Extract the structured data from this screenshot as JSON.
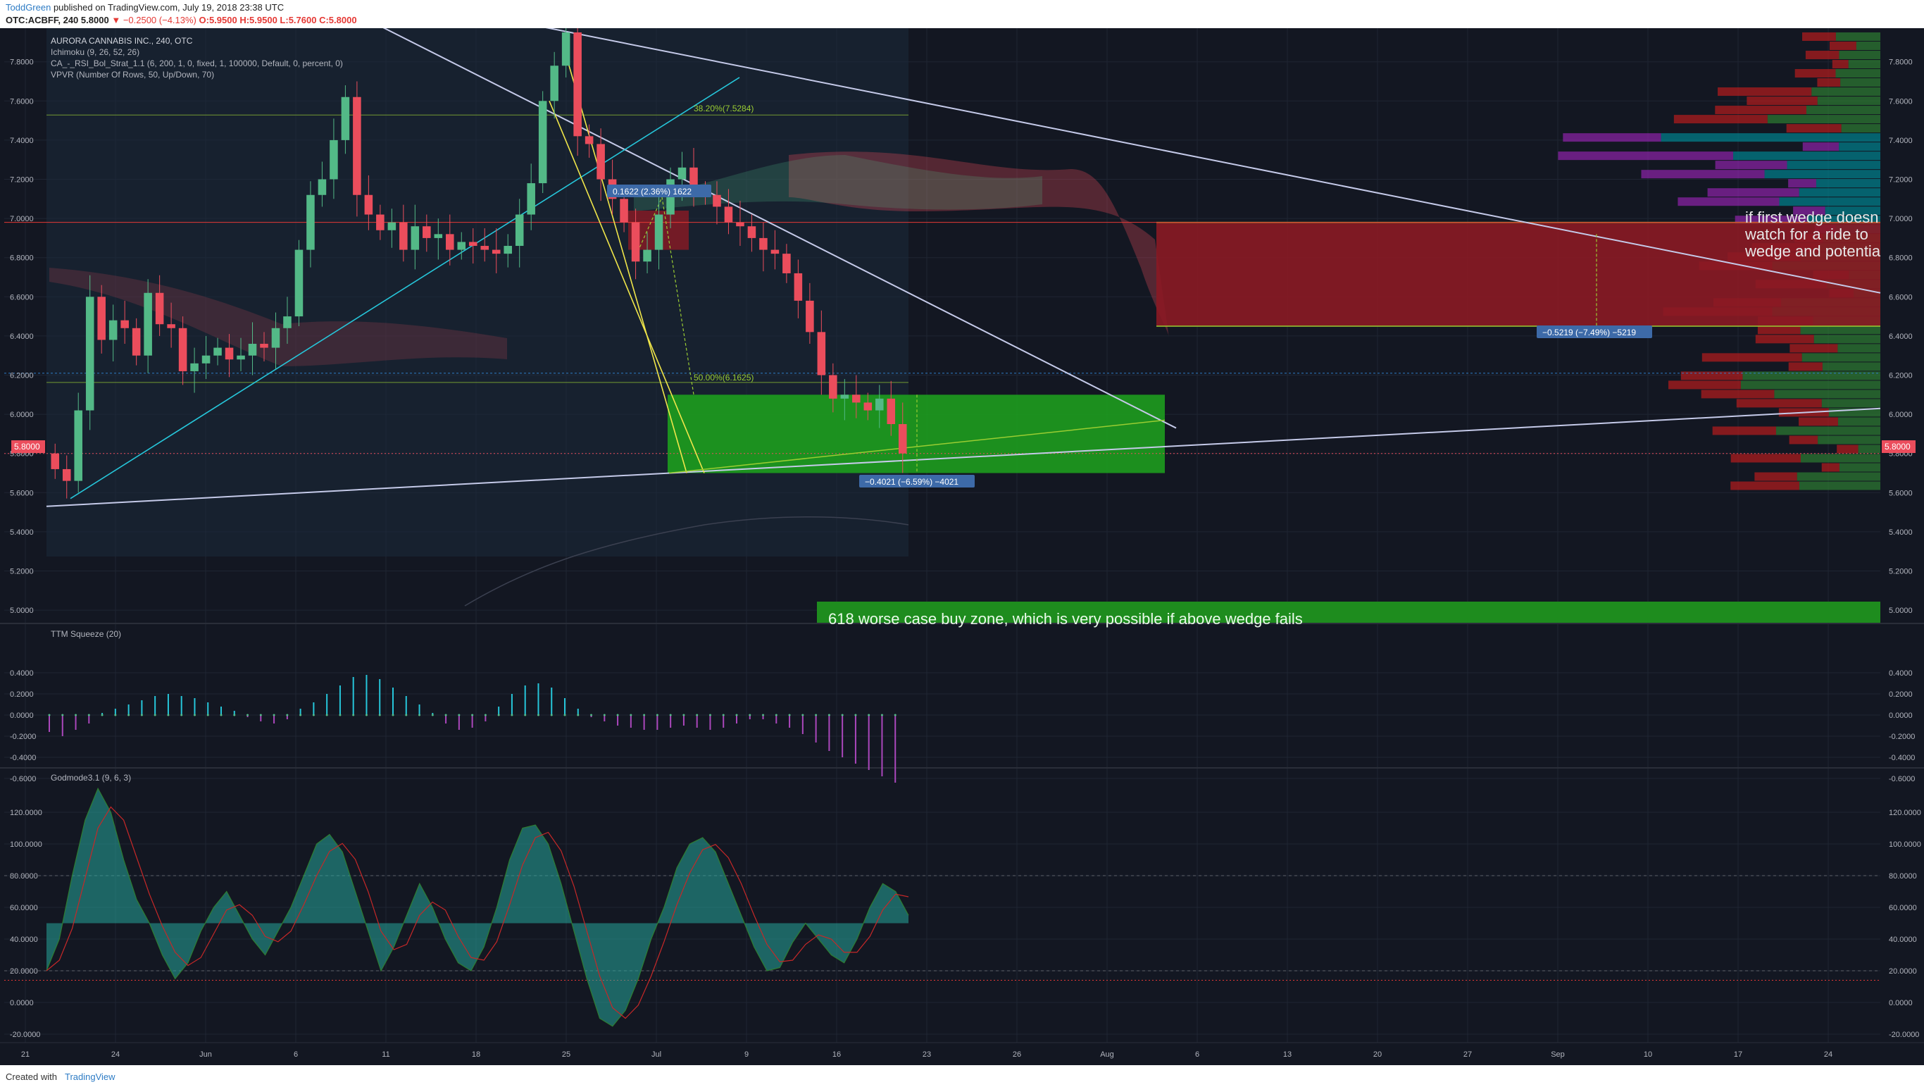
{
  "header": {
    "author": "ToddGreen",
    "published": "published on TradingView.com, July 19, 2018 23:38 UTC",
    "symbol_line_prefix": "OTC:ACBFF, 240",
    "change_arrow": "▼",
    "change": "−0.2500 (−4.13%)",
    "ohlc": "O:5.9500 H:5.9500 L:5.7600 C:5.8000"
  },
  "footer": {
    "created_with": "Created with",
    "brand": "TradingView"
  },
  "colors": {
    "background": "#131722",
    "grid": "#1f2533",
    "up": "#53b987",
    "down": "#eb4d5c",
    "text": "#b2b5be",
    "wedge_line": "#c5cae9",
    "green_zone": "#1e8c1e",
    "red_zone": "#8b1a24"
  },
  "main_pane": {
    "legend": [
      "AURORA CANNABIS INC., 240, OTC",
      "Ichimoku (9, 26, 52, 26)",
      "CA_-_RSI_Bol_Strat_1.1 (6, 200, 1, 0, fixed, 1, 100000, Default, 0, percent, 0)",
      "VPVR (Number Of Rows, 50, Up/Down, 70)"
    ],
    "price_ticks": [
      "7.8000",
      "7.6000",
      "7.4000",
      "7.2000",
      "7.0000",
      "6.8000",
      "6.6000",
      "6.4000",
      "6.2000",
      "6.0000",
      "5.8000",
      "5.6000",
      "5.4000",
      "5.2000",
      "5.0000"
    ],
    "last_price": "5.8000",
    "fib_labels": [
      "38.20%(7.5284)",
      "50.00%(6.1625)"
    ],
    "measure_labels": [
      "0.1622 (2.36%) 1622",
      "−0.4021 (−6.59%) −4021",
      "−0.5219 (−7.49%) −5219"
    ],
    "annotations": [
      "if first wedge doesn",
      "watch for a ride to",
      "wedge and potentia",
      "618 worse case buy zone, which is very possible if above wedge fails"
    ]
  },
  "ttm_pane": {
    "legend": "TTM Squeeze (20)",
    "ticks": [
      "0.4000",
      "0.2000",
      "0.0000",
      "-0.2000",
      "-0.4000",
      "-0.6000"
    ]
  },
  "godmode_pane": {
    "legend": "Godmode3.1 (9, 6, 3)",
    "ticks": [
      "120.0000",
      "100.0000",
      "80.0000",
      "60.0000",
      "40.0000",
      "20.0000",
      "0.0000",
      "-20.0000"
    ]
  },
  "time_axis": [
    "21",
    "24",
    "Jun",
    "6",
    "11",
    "18",
    "25",
    "Jul",
    "9",
    "16",
    "23",
    "26",
    "Aug",
    "6",
    "13",
    "20",
    "27",
    "Sep",
    "10",
    "17",
    "24"
  ],
  "chart_data": {
    "type": "candlestick",
    "title": "AURORA CANNABIS INC., 240, OTC",
    "symbol": "OTC:ACBFF",
    "interval": "240",
    "ylim": [
      4.95,
      7.95
    ],
    "last": {
      "open": 5.95,
      "high": 5.95,
      "low": 5.76,
      "close": 5.8,
      "change": -0.25,
      "change_pct": -4.13
    },
    "closes": [
      5.72,
      5.66,
      6.02,
      6.6,
      6.38,
      6.48,
      6.44,
      6.3,
      6.62,
      6.46,
      6.44,
      6.22,
      6.26,
      6.3,
      6.34,
      6.28,
      6.3,
      6.36,
      6.34,
      6.44,
      6.5,
      6.84,
      7.12,
      7.2,
      7.4,
      7.62,
      7.12,
      7.02,
      6.94,
      6.98,
      6.84,
      6.96,
      6.9,
      6.92,
      6.84,
      6.88,
      6.86,
      6.84,
      6.82,
      6.86,
      7.02,
      7.18,
      7.6,
      7.78,
      7.95,
      7.42,
      7.38,
      7.2,
      7.1,
      6.98,
      6.78,
      6.84,
      7.02,
      7.2,
      7.26,
      7.14,
      7.12,
      7.06,
      6.98,
      6.96,
      6.9,
      6.84,
      6.82,
      6.72,
      6.58,
      6.42,
      6.2,
      6.08,
      6.1,
      6.06,
      6.02,
      6.08,
      5.95,
      5.8
    ],
    "ichimoku_cloud_end": 6.4,
    "red_zone": [
      6.45,
      6.98
    ],
    "green_zone": [
      5.7,
      6.1
    ],
    "fib_levels": [
      {
        "label": "38.20%",
        "value": 7.5284
      },
      {
        "label": "50.00%",
        "value": 6.1625
      }
    ],
    "ttm_squeeze": [
      -0.16,
      -0.2,
      -0.14,
      -0.08,
      0.02,
      0.06,
      0.1,
      0.14,
      0.18,
      0.2,
      0.18,
      0.16,
      0.12,
      0.08,
      0.04,
      -0.02,
      -0.06,
      -0.08,
      -0.04,
      0.06,
      0.12,
      0.2,
      0.28,
      0.36,
      0.38,
      0.34,
      0.26,
      0.18,
      0.1,
      0.02,
      -0.08,
      -0.14,
      -0.12,
      -0.06,
      0.08,
      0.2,
      0.28,
      0.3,
      0.26,
      0.16,
      0.06,
      -0.02,
      -0.06,
      -0.1,
      -0.12,
      -0.14,
      -0.14,
      -0.12,
      -0.1,
      -0.12,
      -0.14,
      -0.12,
      -0.08,
      -0.04,
      -0.04,
      -0.08,
      -0.12,
      -0.18,
      -0.26,
      -0.34,
      -0.4,
      -0.46,
      -0.52,
      -0.58,
      -0.64
    ],
    "godmode": [
      20,
      40,
      80,
      115,
      135,
      120,
      90,
      65,
      50,
      30,
      15,
      25,
      45,
      60,
      70,
      55,
      40,
      30,
      45,
      60,
      80,
      100,
      106,
      95,
      70,
      45,
      20,
      35,
      55,
      75,
      60,
      40,
      25,
      20,
      35,
      60,
      90,
      110,
      112,
      100,
      75,
      45,
      15,
      -10,
      -15,
      -5,
      15,
      40,
      60,
      85,
      100,
      104,
      95,
      75,
      55,
      35,
      20,
      22,
      38,
      50,
      40,
      30,
      25,
      40,
      60,
      75,
      70,
      55
    ]
  }
}
